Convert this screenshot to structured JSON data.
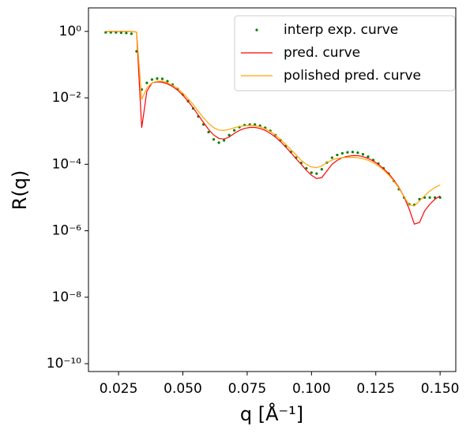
{
  "chart_data": {
    "type": "line",
    "x_label": "q [Å⁻¹]",
    "y_label": "R(q)",
    "x": [
      0.02,
      0.022,
      0.024,
      0.026,
      0.028,
      0.03,
      0.032,
      0.034,
      0.036,
      0.038,
      0.04,
      0.042,
      0.044,
      0.046,
      0.048,
      0.05,
      0.052,
      0.054,
      0.056,
      0.058,
      0.06,
      0.062,
      0.064,
      0.066,
      0.068,
      0.07,
      0.072,
      0.074,
      0.076,
      0.078,
      0.08,
      0.082,
      0.084,
      0.086,
      0.088,
      0.09,
      0.092,
      0.094,
      0.096,
      0.098,
      0.1,
      0.102,
      0.104,
      0.106,
      0.108,
      0.11,
      0.112,
      0.114,
      0.116,
      0.118,
      0.12,
      0.122,
      0.124,
      0.126,
      0.128,
      0.13,
      0.132,
      0.134,
      0.136,
      0.138,
      0.14,
      0.142,
      0.144,
      0.146,
      0.148,
      0.15
    ],
    "series": [
      {
        "name": "interp exp. curve",
        "type": "scatter",
        "color": "#008000",
        "values": [
          0.933,
          0.933,
          0.933,
          0.912,
          0.891,
          0.851,
          0.251,
          0.0178,
          0.0282,
          0.0355,
          0.038,
          0.0372,
          0.0316,
          0.0251,
          0.0186,
          0.0126,
          0.00794,
          0.00479,
          0.00275,
          0.00158,
          0.000933,
          0.000562,
          0.000447,
          0.000525,
          0.000759,
          0.00105,
          0.00132,
          0.00151,
          0.00158,
          0.00158,
          0.00145,
          0.00126,
          0.00102,
          0.000759,
          0.000537,
          0.000355,
          0.000234,
          0.000158,
          0.00011,
          7.59e-05,
          5.62e-05,
          5.25e-05,
          7.08e-05,
          0.000112,
          0.000158,
          0.000191,
          0.000214,
          0.000229,
          0.000234,
          0.000224,
          0.0002,
          0.00017,
          0.000135,
          0.000105,
          7.59e-05,
          5.25e-05,
          3.16e-05,
          1.78e-05,
          1e-05,
          6.31e-06,
          6.03e-06,
          8.91e-06,
          1e-05,
          1e-05,
          1e-05,
          1e-05
        ]
      },
      {
        "name": "pred. curve",
        "type": "line",
        "color": "#ff0000",
        "values": [
          1,
          1,
          1,
          1,
          1,
          1,
          0.955,
          0.00126,
          0.0158,
          0.0282,
          0.0302,
          0.0295,
          0.0263,
          0.0219,
          0.017,
          0.012,
          0.00794,
          0.00501,
          0.00302,
          0.00182,
          0.00112,
          0.000759,
          0.000603,
          0.000575,
          0.000661,
          0.000851,
          0.00105,
          0.0012,
          0.00129,
          0.00129,
          0.0012,
          0.00105,
          0.000851,
          0.000661,
          0.000479,
          0.000331,
          0.000224,
          0.000148,
          0.0001,
          6.61e-05,
          4.68e-05,
          3.72e-05,
          3.98e-05,
          6.31e-05,
          0.0001,
          0.000132,
          0.000158,
          0.000174,
          0.000182,
          0.000182,
          0.00017,
          0.000151,
          0.000126,
          0.0001,
          7.41e-05,
          5.25e-05,
          3.39e-05,
          2e-05,
          1.05e-05,
          4.47e-06,
          1.58e-06,
          1.78e-06,
          3.98e-06,
          6.31e-06,
          8.91e-06,
          1.12e-05
        ]
      },
      {
        "name": "polished pred. curve",
        "type": "line",
        "color": "#ffa500",
        "values": [
          1,
          1,
          1,
          1,
          1,
          1,
          0.955,
          0.00891,
          0.02,
          0.0282,
          0.0316,
          0.0316,
          0.0282,
          0.024,
          0.0191,
          0.0138,
          0.00955,
          0.00631,
          0.00398,
          0.00251,
          0.0017,
          0.00126,
          0.00107,
          0.00105,
          0.00112,
          0.00126,
          0.00138,
          0.00145,
          0.00148,
          0.00145,
          0.00135,
          0.00117,
          0.000977,
          0.000759,
          0.000562,
          0.000398,
          0.000275,
          0.000191,
          0.000132,
          0.0001,
          8.32e-05,
          7.94e-05,
          8.91e-05,
          0.000112,
          0.000135,
          0.000151,
          0.000158,
          0.000162,
          0.000162,
          0.000158,
          0.000148,
          0.000132,
          0.000112,
          8.91e-05,
          6.76e-05,
          4.79e-05,
          3.16e-05,
          1.91e-05,
          1.05e-05,
          6.03e-06,
          5.62e-06,
          7.94e-06,
          1.12e-05,
          1.58e-05,
          2e-05,
          2.4e-05
        ]
      }
    ],
    "xlim": [
      0.0133,
      0.1561
    ],
    "xticks": [
      0.025,
      {
        "value": 0.05,
        "label": "0.050"
      },
      0.075,
      {
        "value": 0.1,
        "label": "0.100"
      },
      0.125,
      {
        "value": 0.15,
        "label": "0.150"
      }
    ],
    "ylim": [
      5.8e-11,
      5.1
    ],
    "yticks": [
      {
        "value": 1,
        "label": "10⁰"
      },
      {
        "value": 0.01,
        "label": "10⁻²"
      },
      {
        "value": 0.0001,
        "label": "10⁻⁴"
      },
      {
        "value": 1e-06,
        "label": "10⁻⁶"
      },
      {
        "value": 1e-08,
        "label": "10⁻⁸"
      },
      {
        "value": 1e-10,
        "label": "10⁻¹⁰"
      }
    ],
    "y_log": true,
    "grid": false,
    "legend": "upper right"
  }
}
